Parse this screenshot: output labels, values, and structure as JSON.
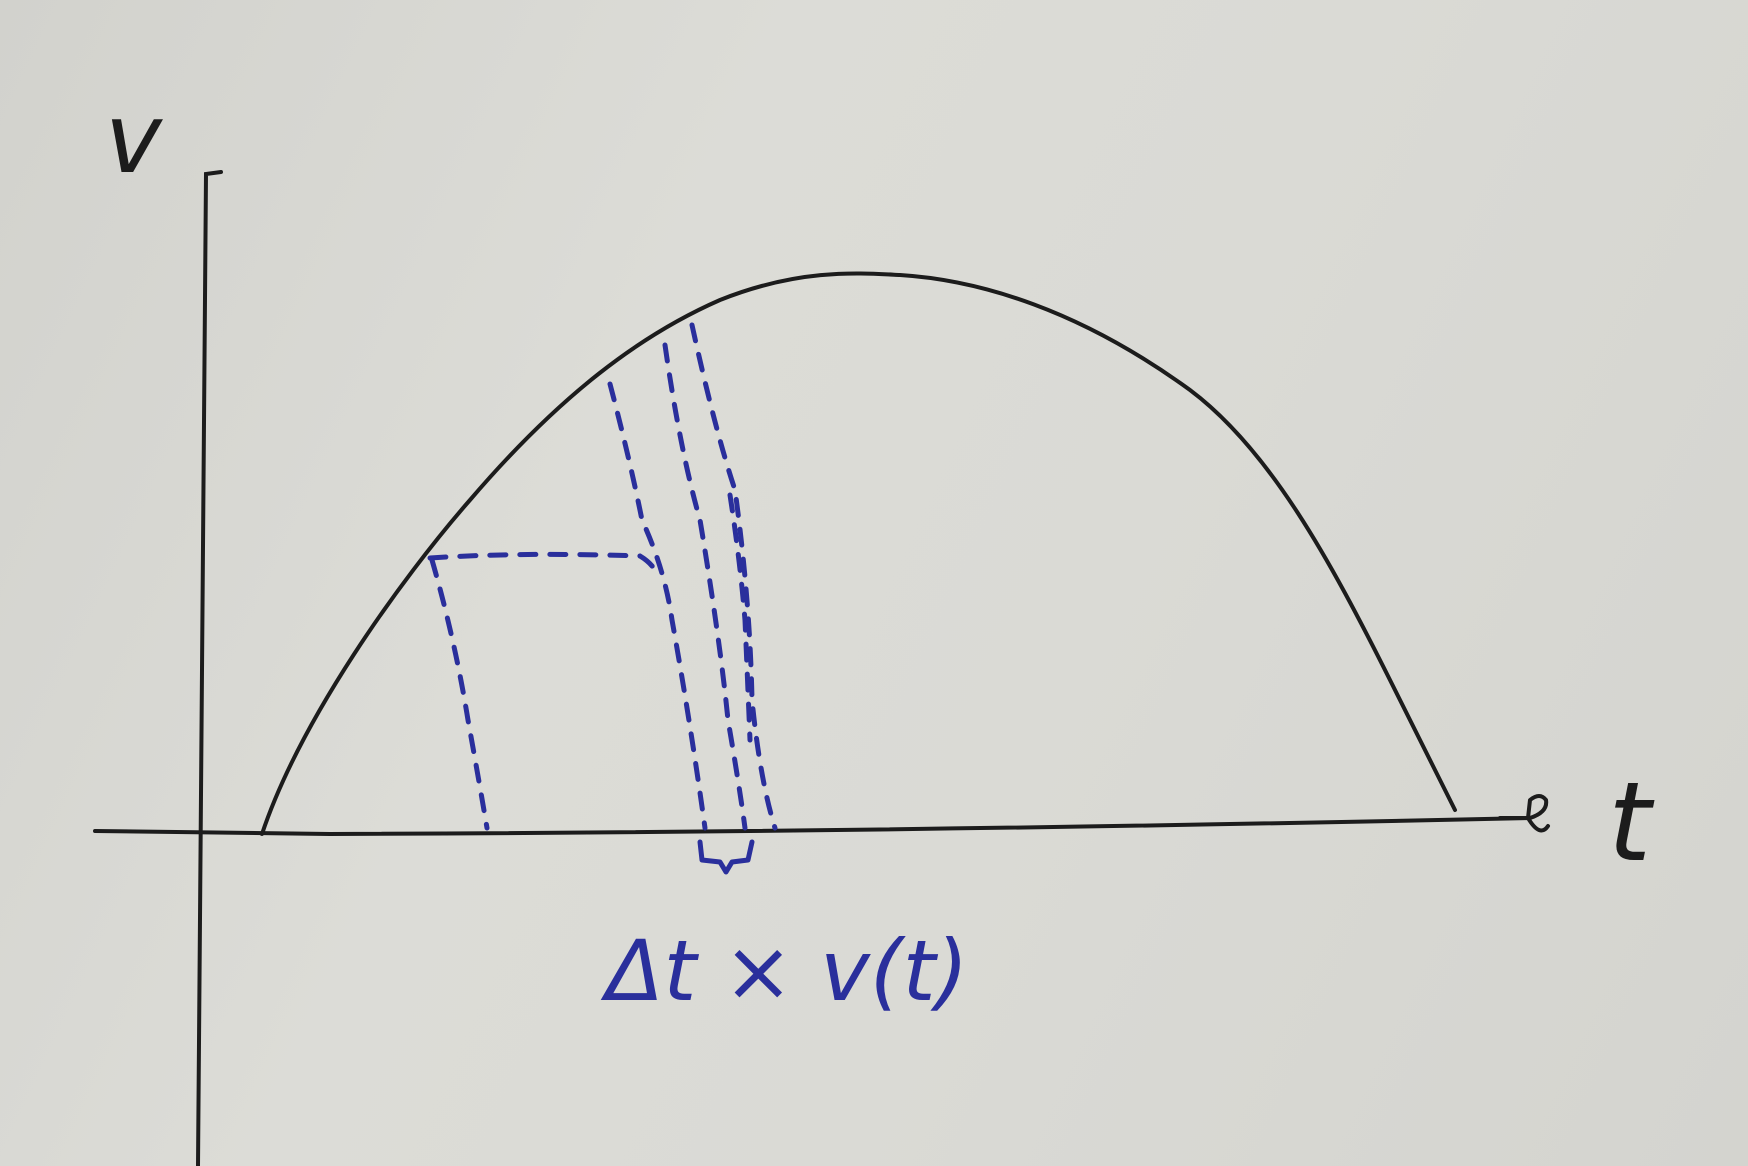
{
  "diagram": {
    "y_axis_label": "v",
    "x_axis_label": "t",
    "annotation": "Δt × v(t)",
    "colors": {
      "board": "#d8d8d3",
      "ink_black": "#1c1c1c",
      "ink_blue": "#2a2f9c"
    },
    "shapes": [
      "y-axis",
      "x-axis-with-arrow",
      "velocity-curve",
      "dashed-strip-wide",
      "dashed-strip-narrow",
      "brace-under-strip"
    ]
  }
}
